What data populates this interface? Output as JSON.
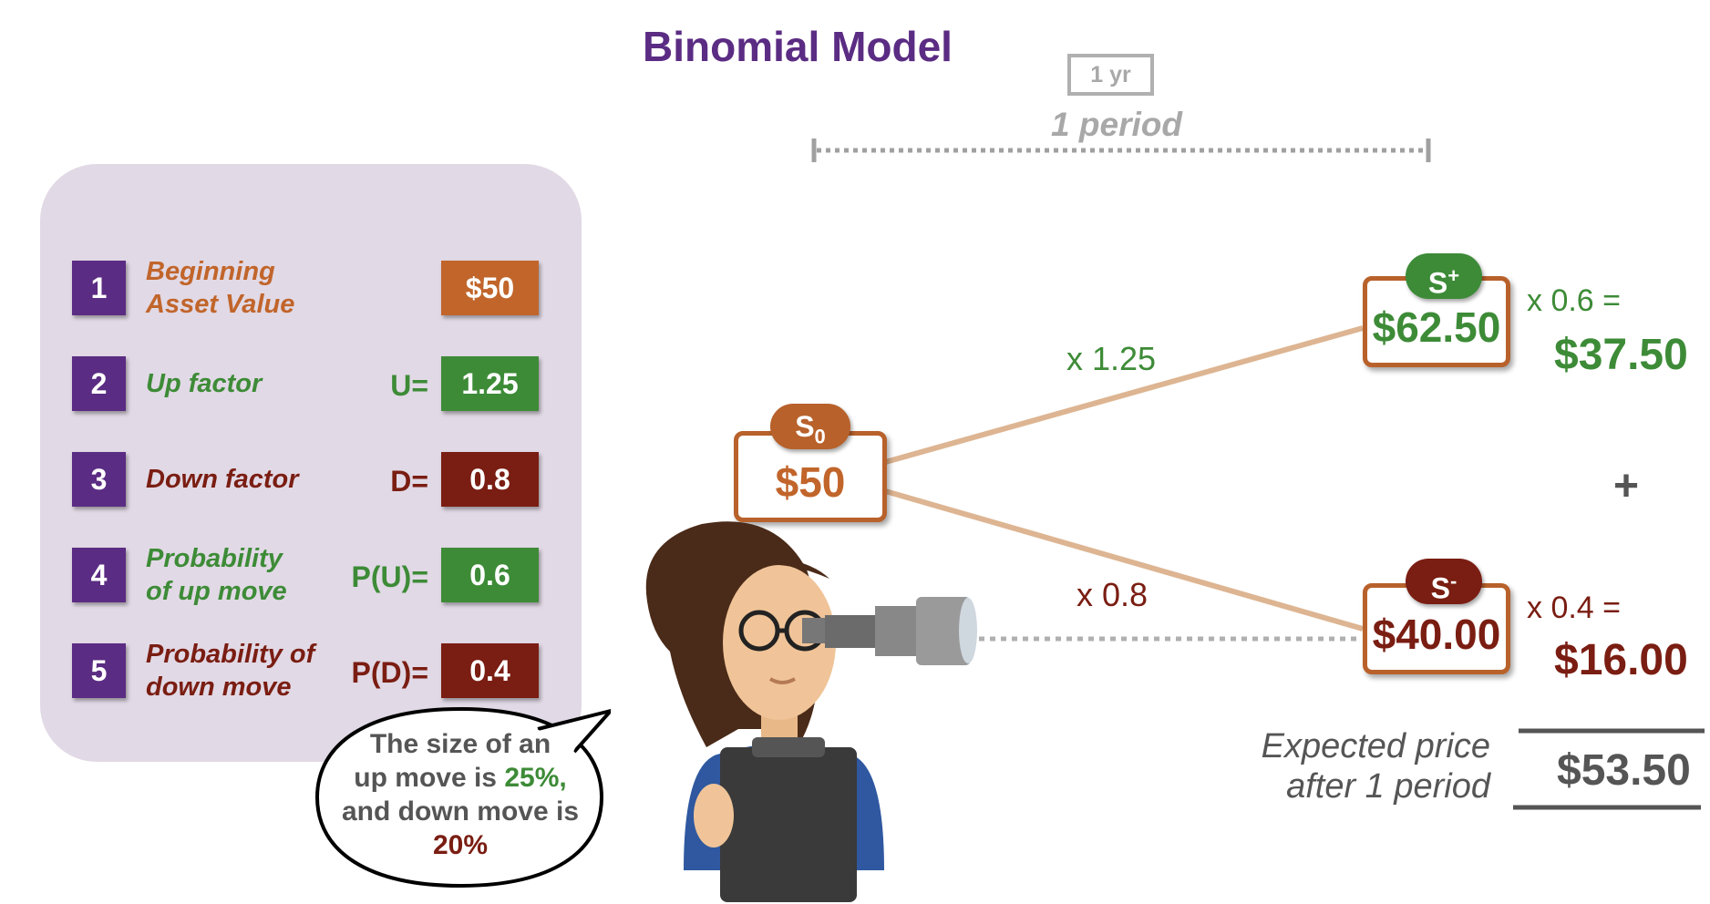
{
  "title": "Binomial Model",
  "timeline": {
    "box_label": "1 yr",
    "period_label": "1 period"
  },
  "inputs": [
    {
      "num": "1",
      "label_line1": "Beginning",
      "label_line2": "Asset Value",
      "eq": "",
      "value": "$50",
      "label_color": "#c1652b",
      "value_bg": "#c1652b"
    },
    {
      "num": "2",
      "label_line1": "Up factor",
      "label_line2": "",
      "eq": "U=",
      "value": "1.25",
      "label_color": "#3d8b37",
      "value_bg": "#3d8b37"
    },
    {
      "num": "3",
      "label_line1": "Down factor",
      "label_line2": "",
      "eq": "D=",
      "value": "0.8",
      "label_color": "#7a1d12",
      "value_bg": "#7a1d12"
    },
    {
      "num": "4",
      "label_line1": "Probability",
      "label_line2": "of up move",
      "eq": "P(U)=",
      "value": "0.6",
      "label_color": "#3d8b37",
      "value_bg": "#3d8b37"
    },
    {
      "num": "5",
      "label_line1": "Probability of",
      "label_line2": "down move",
      "eq": "P(D)=",
      "value": "0.4",
      "label_color": "#7a1d12",
      "value_bg": "#7a1d12"
    }
  ],
  "tree": {
    "root": {
      "tag": "S",
      "tag_sub": "0",
      "value": "$50"
    },
    "up": {
      "tag": "S",
      "tag_sup": "+",
      "value": "$62.50",
      "factor": "x 1.25",
      "prob_mult": "x 0.6 =",
      "weighted": "$37.50"
    },
    "down": {
      "tag": "S",
      "tag_sup": "-",
      "value": "$40.00",
      "factor": "x 0.8",
      "prob_mult": "x 0.4 =",
      "weighted": "$16.00"
    },
    "plus": "+"
  },
  "expected": {
    "label_line1": "Expected price",
    "label_line2": "after 1 period",
    "value": "$53.50"
  },
  "speech": {
    "line1": "The size of an",
    "line2a": "up move is ",
    "line2b": "25%,",
    "line3": "and down move is",
    "line4": "20%"
  },
  "colors": {
    "purple": "#5b2c83",
    "orange": "#c1652b",
    "green": "#3d8b37",
    "maroon": "#7a1d12",
    "panel": "#e1d9e5",
    "branch": "#ddb592"
  }
}
